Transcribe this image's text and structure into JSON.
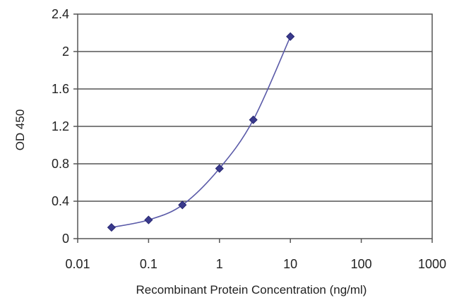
{
  "chart_data": {
    "type": "scatter",
    "title": "",
    "xlabel": "Recombinant Protein Concentration (ng/ml)",
    "ylabel": "OD 450",
    "x_scale": "log",
    "xlim": [
      0.01,
      1000
    ],
    "ylim": [
      0,
      2.4
    ],
    "x_ticks": [
      0.01,
      0.1,
      1,
      10,
      100,
      1000
    ],
    "x_tick_labels": [
      "0.01",
      "0.1",
      "1",
      "10",
      "100",
      "1000"
    ],
    "y_ticks": [
      0,
      0.4,
      0.8,
      1.2,
      1.6,
      2,
      2.4
    ],
    "y_tick_labels": [
      "0",
      "0.4",
      "0.8",
      "1.2",
      "1.6",
      "2",
      "2.4"
    ],
    "grid": "horizontal",
    "legend": "none",
    "series": [
      {
        "x": [
          0.03,
          0.1,
          0.3,
          1,
          3,
          10
        ],
        "y": [
          0.12,
          0.2,
          0.36,
          0.75,
          1.27,
          2.16
        ],
        "color": "#3a3a8c",
        "marker": "diamond",
        "line": "smooth"
      }
    ]
  }
}
